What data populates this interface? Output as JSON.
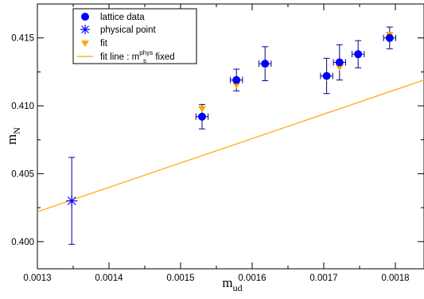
{
  "chart_data": {
    "type": "scatter",
    "xlim": [
      0.0013,
      0.00184
    ],
    "ylim": [
      0.398,
      0.4175
    ],
    "xticks": [
      0.0013,
      0.0014,
      0.0015,
      0.0016,
      0.0017,
      0.0018
    ],
    "yticks": [
      0.4,
      0.405,
      0.41,
      0.415
    ],
    "xtick_labels": [
      "0.0013",
      "0.0014",
      "0.0015",
      "0.0016",
      "0.0017",
      "0.0018"
    ],
    "ytick_labels": [
      "0.400",
      "0.405",
      "0.410",
      "0.415"
    ],
    "xlabel": {
      "main": "m",
      "sub": "ud"
    },
    "ylabel": {
      "main": "m",
      "sub": "N"
    },
    "grid": false,
    "legend_position": "top-left",
    "colors": {
      "lattice": "#0000ff",
      "errorbar": "#00008b",
      "fit": "#ffa500",
      "physical": "#0000ff"
    },
    "legend": {
      "lattice": "lattice data",
      "physical": "physical point",
      "fit": "fit",
      "fitline": {
        "pre": "fit line : m",
        "sub": "s",
        "sup": "phys",
        "post": " fixed"
      }
    },
    "lattice_data": [
      {
        "x": 0.00153,
        "y": 0.4092,
        "yerr": 0.0009,
        "xerr": 8.5e-06
      },
      {
        "x": 0.001578,
        "y": 0.4119,
        "yerr": 0.0008,
        "xerr": 8.5e-06
      },
      {
        "x": 0.001618,
        "y": 0.4131,
        "yerr": 0.00125,
        "xerr": 8.5e-06
      },
      {
        "x": 0.001704,
        "y": 0.4122,
        "yerr": 0.0013,
        "xerr": 8.5e-06
      },
      {
        "x": 0.001722,
        "y": 0.4132,
        "yerr": 0.0013,
        "xerr": 8.5e-06
      },
      {
        "x": 0.001748,
        "y": 0.4138,
        "yerr": 0.001,
        "xerr": 8.5e-06
      },
      {
        "x": 0.001792,
        "y": 0.415,
        "yerr": 0.0008,
        "xerr": 8.5e-06
      }
    ],
    "fit_points": [
      {
        "x": 0.00153,
        "y": 0.40975
      },
      {
        "x": 0.001578,
        "y": 0.4115
      },
      {
        "x": 0.001618,
        "y": 0.41295
      },
      {
        "x": 0.001704,
        "y": 0.41205
      },
      {
        "x": 0.001722,
        "y": 0.4128
      },
      {
        "x": 0.001748,
        "y": 0.41375
      },
      {
        "x": 0.001792,
        "y": 0.4152
      }
    ],
    "physical_point": {
      "x": 0.001348,
      "y": 0.403,
      "yerr": 0.0032
    },
    "fit_line": {
      "x": [
        0.0013,
        0.00184
      ],
      "y": [
        0.4022,
        0.4119
      ]
    }
  }
}
